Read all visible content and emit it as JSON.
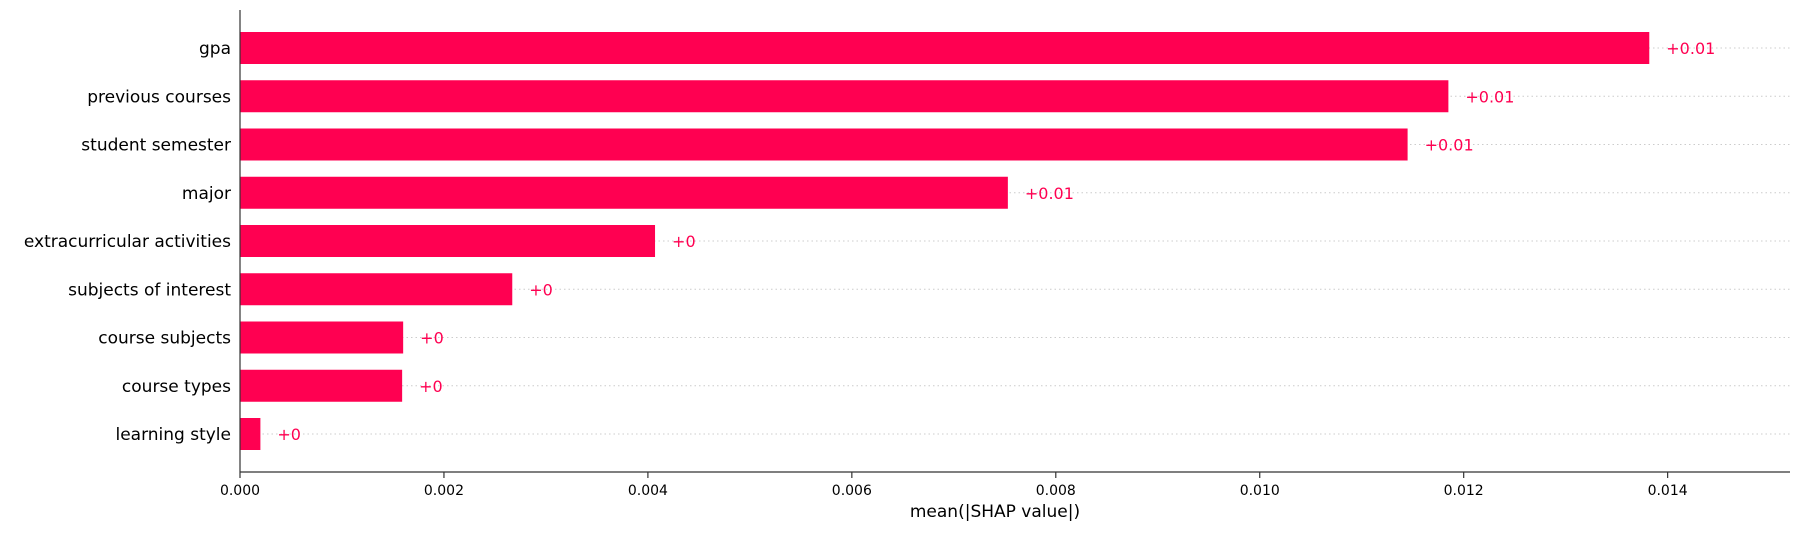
{
  "chart_data": {
    "type": "bar",
    "orientation": "horizontal",
    "categories": [
      "gpa",
      "previous courses",
      "student semester",
      "major",
      "extracurricular activities",
      "subjects of interest",
      "course subjects",
      "course types",
      "learning style"
    ],
    "values": [
      0.01382,
      0.01185,
      0.01145,
      0.00753,
      0.00407,
      0.00267,
      0.0016,
      0.00159,
      0.0002
    ],
    "value_labels": [
      "+0.01",
      "+0.01",
      "+0.01",
      "+0.01",
      "+0",
      "+0",
      "+0",
      "+0",
      "+0"
    ],
    "xlabel": "mean(|SHAP value|)",
    "ylabel": "",
    "title": "",
    "xlim": [
      0,
      0.0152
    ],
    "xticks": [
      0.0,
      0.002,
      0.004,
      0.006,
      0.008,
      0.01,
      0.012,
      0.014
    ],
    "xtick_labels": [
      "0.000",
      "0.002",
      "0.004",
      "0.006",
      "0.008",
      "0.010",
      "0.012",
      "0.014"
    ],
    "grid": "horizontal dotted guide lines per category",
    "colors": {
      "bar": "#ff0051",
      "value_label": "#ff0051",
      "axis": "#333333",
      "text": "#000000",
      "guide": "#cccccc"
    }
  }
}
